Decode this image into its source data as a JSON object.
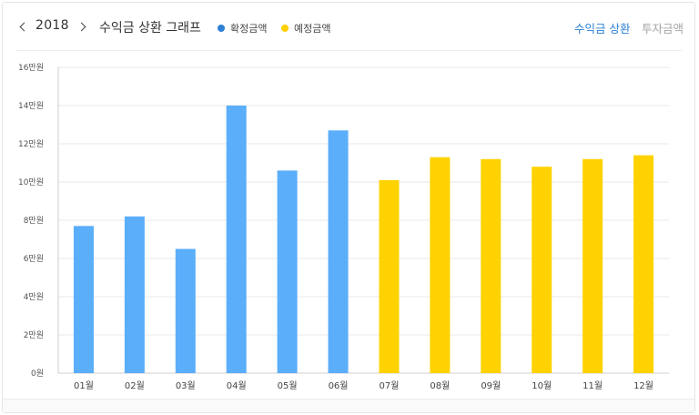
{
  "header": {
    "year": "2018",
    "title": "수익금 상환 그래프",
    "legend": [
      {
        "label": "확정금액",
        "color": "#2f7fd4"
      },
      {
        "label": "예정금액",
        "color": "#ffd000"
      }
    ],
    "tabs": [
      {
        "label": "수익금 상환",
        "active": true
      },
      {
        "label": "투자금액",
        "active": false
      }
    ]
  },
  "colors": {
    "confirmed_bar": "#5aaefa",
    "expected_bar": "#ffd200",
    "grid": "#e9e9e9",
    "axis": "#cfcfcf"
  },
  "chart_data": {
    "type": "bar",
    "categories": [
      "01월",
      "02월",
      "03월",
      "04월",
      "05월",
      "06월",
      "07월",
      "08월",
      "09월",
      "10월",
      "11월",
      "12월"
    ],
    "values": [
      77000,
      82000,
      65000,
      140000,
      106000,
      127000,
      101000,
      113000,
      112000,
      108000,
      112000,
      114000
    ],
    "series_by_bar": [
      "확정금액",
      "확정금액",
      "확정금액",
      "확정금액",
      "확정금액",
      "확정금액",
      "예정금액",
      "예정금액",
      "예정금액",
      "예정금액",
      "예정금액",
      "예정금액"
    ],
    "ylim": [
      0,
      160000
    ],
    "yticks": [
      0,
      20000,
      40000,
      60000,
      80000,
      100000,
      120000,
      140000,
      160000
    ],
    "ytick_labels": [
      "0원",
      "2만원",
      "4만원",
      "6만원",
      "8만원",
      "10만원",
      "12만원",
      "14만원",
      "16만원"
    ],
    "grid": true,
    "legend_position": "top"
  }
}
